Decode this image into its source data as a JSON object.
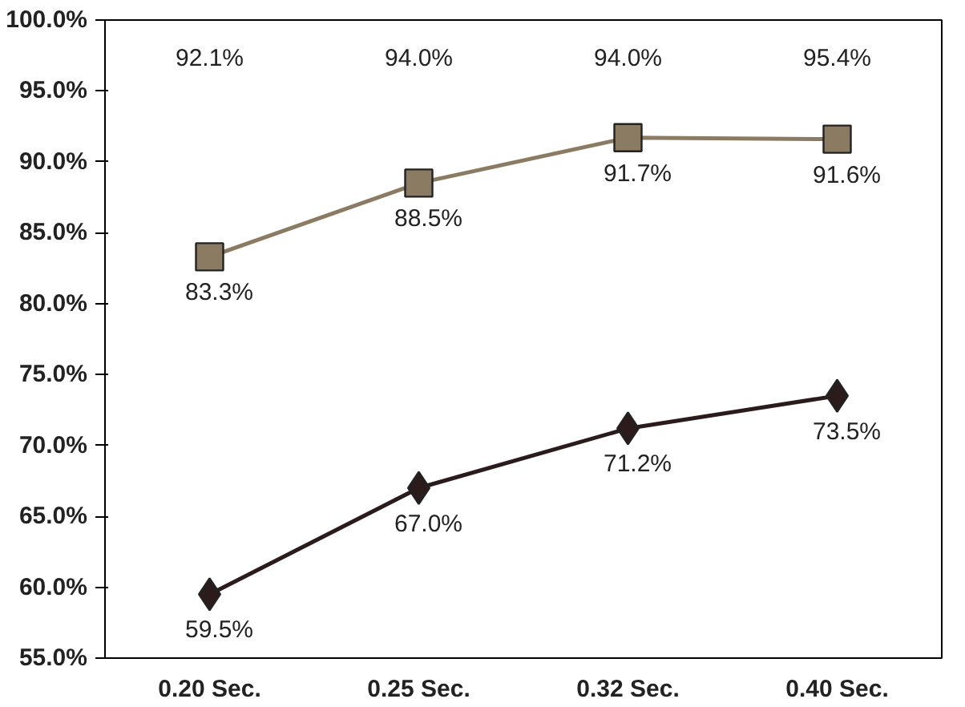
{
  "chart_data": {
    "type": "line",
    "categories": [
      "0.20 Sec.",
      "0.25 Sec.",
      "0.32 Sec.",
      "0.40 Sec."
    ],
    "series": [
      {
        "color": "#8c7b63",
        "marker": "square",
        "values": [
          83.3,
          88.5,
          91.7,
          91.6
        ],
        "value_labels": [
          "83.3%",
          "88.5%",
          "91.7%",
          "91.6%"
        ]
      },
      {
        "color": "#2b1b1b",
        "marker": "diamond",
        "values": [
          59.5,
          67.0,
          71.2,
          73.5
        ],
        "value_labels": [
          "59.5%",
          "67.0%",
          "71.2%",
          "73.5%"
        ]
      }
    ],
    "annotations": [
      "92.1%",
      "94.0%",
      "94.0%",
      "95.4%"
    ],
    "ylim": [
      55,
      100
    ],
    "yticks": [
      {
        "value": 55,
        "label": "55.0%"
      },
      {
        "value": 60,
        "label": "60.0%"
      },
      {
        "value": 65,
        "label": "65.0%"
      },
      {
        "value": 70,
        "label": "70.0%"
      },
      {
        "value": 75,
        "label": "75.0%"
      },
      {
        "value": 80,
        "label": "80.0%"
      },
      {
        "value": 85,
        "label": "85.0%"
      },
      {
        "value": 90,
        "label": "90.0%"
      },
      {
        "value": 95,
        "label": "95.0%"
      },
      {
        "value": 100,
        "label": "100.0%"
      }
    ],
    "grid": false
  }
}
